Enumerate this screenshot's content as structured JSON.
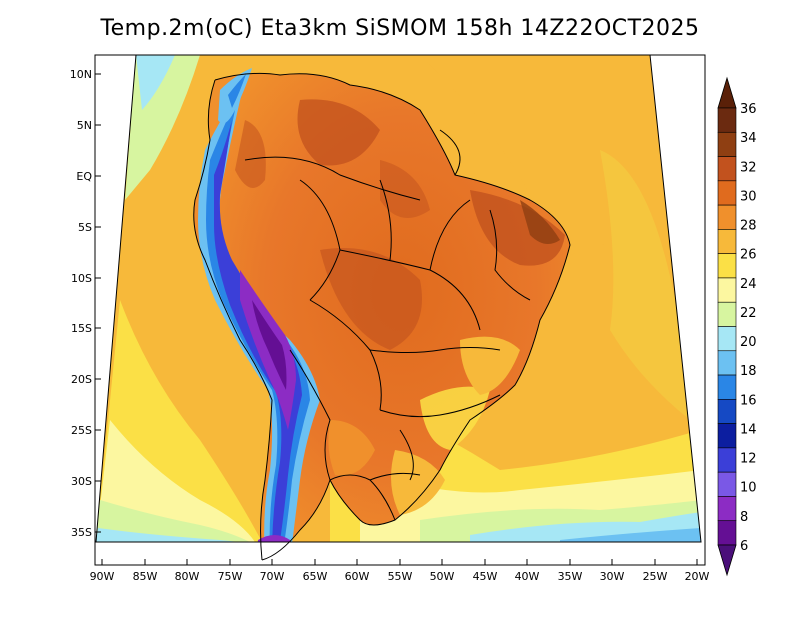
{
  "title": "Temp.2m(oC) Eta3km SiSMOM 158h 14Z22OCT2025",
  "lat_labels": [
    "10N",
    "5N",
    "EQ",
    "5S",
    "10S",
    "15S",
    "20S",
    "25S",
    "30S",
    "35S"
  ],
  "lon_labels": [
    "90W",
    "85W",
    "80W",
    "75W",
    "70W",
    "65W",
    "60W",
    "55W",
    "50W",
    "45W",
    "40W",
    "35W",
    "30W",
    "25W",
    "20W"
  ],
  "colorbar": {
    "labels": [
      "36",
      "34",
      "32",
      "30",
      "28",
      "26",
      "24",
      "22",
      "20",
      "18",
      "16",
      "14",
      "12",
      "10",
      "8",
      "6"
    ],
    "colors": [
      "#6b2a10",
      "#8f3f12",
      "#c2521e",
      "#e06b1e",
      "#f0902c",
      "#f7b93a",
      "#fbe046",
      "#fcf7a0",
      "#d7f5a0",
      "#a6e7f5",
      "#6cc1f2",
      "#2a86e6",
      "#1549c4",
      "#0c1ea0",
      "#3b3fd8",
      "#7a58e6",
      "#8c2cc4",
      "#640f94"
    ],
    "top_color": "#5a2008",
    "bottom_color": "#4a0f7a"
  }
}
